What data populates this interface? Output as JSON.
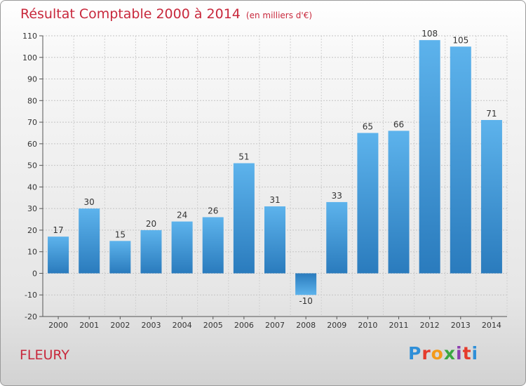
{
  "chart_data": {
    "type": "bar",
    "title": "Résultat Comptable 2000 à 2014",
    "subtitle": "(en milliers d'€)",
    "categories": [
      "2000",
      "2001",
      "2002",
      "2003",
      "2004",
      "2005",
      "2006",
      "2007",
      "2008",
      "2009",
      "2010",
      "2011",
      "2012",
      "2013",
      "2014"
    ],
    "values": [
      17,
      30,
      15,
      20,
      24,
      26,
      51,
      31,
      -10,
      33,
      65,
      66,
      108,
      105,
      71
    ],
    "value_labels": [
      "17",
      "30",
      "15",
      "20",
      "24",
      "26",
      "51",
      "31",
      "-10",
      "33",
      "65",
      "66",
      "108",
      "105",
      "71"
    ],
    "y_ticks": [
      -20,
      -10,
      0,
      10,
      20,
      30,
      40,
      50,
      60,
      70,
      80,
      90,
      100,
      110
    ],
    "y_tick_labels": [
      "-20",
      "-10",
      "0",
      "10",
      "20",
      "30",
      "40",
      "50",
      "60",
      "70",
      "80",
      "90",
      "100",
      "110"
    ],
    "ylim": [
      -20,
      110
    ],
    "grid": true,
    "xlabel": "",
    "ylabel": "",
    "bar_color": "#3f9ee0",
    "bar_color_dark": "#2a7bbd"
  },
  "footer": {
    "commune": "FLEURY",
    "brand_letters": [
      "P",
      "r",
      "o",
      "x",
      "i",
      "t",
      "i"
    ]
  }
}
